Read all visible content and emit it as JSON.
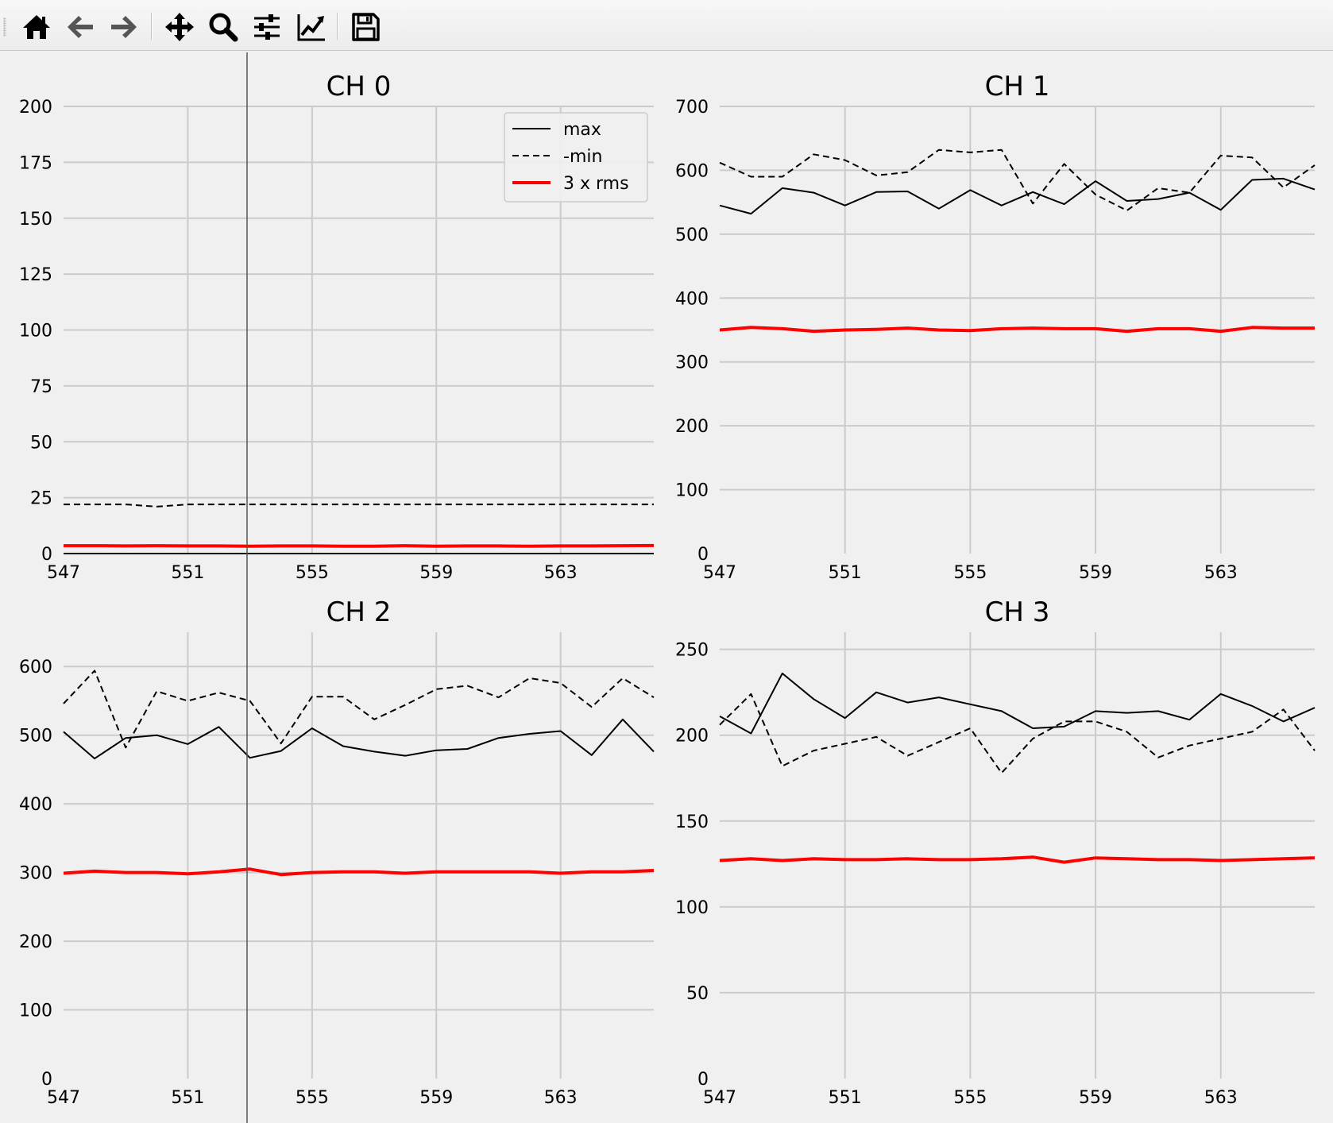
{
  "toolbar": {
    "buttons": [
      {
        "name": "home-button",
        "icon": "home-icon"
      },
      {
        "name": "back-button",
        "icon": "arrow-left-icon"
      },
      {
        "name": "forward-button",
        "icon": "arrow-right-icon"
      },
      {
        "name": "pan-button",
        "icon": "move-icon"
      },
      {
        "name": "zoom-button",
        "icon": "magnifier-icon"
      },
      {
        "name": "subplots-button",
        "icon": "sliders-icon"
      },
      {
        "name": "customize-button",
        "icon": "line-chart-icon"
      },
      {
        "name": "save-button",
        "icon": "floppy-disk-icon"
      }
    ]
  },
  "chart_data": [
    {
      "type": "line",
      "title": "CH 0",
      "xlim": [
        547,
        566
      ],
      "ylim": [
        0,
        200
      ],
      "xticks": [
        547,
        551,
        555,
        559,
        563
      ],
      "yticks": [
        0,
        25,
        50,
        75,
        100,
        125,
        150,
        175,
        200
      ],
      "grid": true,
      "legend": {
        "placement": "top-right",
        "entries": [
          "max",
          "-min",
          "3 x rms"
        ]
      },
      "x": [
        547,
        548,
        549,
        550,
        551,
        552,
        553,
        554,
        555,
        556,
        557,
        558,
        559,
        560,
        561,
        562,
        563,
        564,
        565,
        566
      ],
      "series": [
        {
          "name": "max",
          "style": "solid",
          "color": "#000000",
          "values": [
            0,
            0,
            0,
            0,
            0,
            0,
            0,
            0,
            0,
            0,
            0,
            0,
            0,
            0,
            0,
            0,
            0,
            0,
            0,
            0
          ]
        },
        {
          "name": "-min",
          "style": "dashed",
          "color": "#000000",
          "values": [
            22,
            22,
            22,
            21,
            22,
            22,
            22,
            22,
            22,
            22,
            22,
            22,
            22,
            22,
            22,
            22,
            22,
            22,
            22,
            22
          ]
        },
        {
          "name": "3 x rms",
          "style": "solid",
          "color": "#ff0000",
          "values": [
            3.5,
            3.5,
            3.4,
            3.5,
            3.4,
            3.4,
            3.3,
            3.4,
            3.4,
            3.3,
            3.3,
            3.5,
            3.3,
            3.4,
            3.4,
            3.3,
            3.4,
            3.4,
            3.5,
            3.6
          ]
        }
      ]
    },
    {
      "type": "line",
      "title": "CH 1",
      "xlim": [
        547,
        566
      ],
      "ylim": [
        0,
        700
      ],
      "xticks": [
        547,
        551,
        555,
        559,
        563
      ],
      "yticks": [
        0,
        100,
        200,
        300,
        400,
        500,
        600,
        700
      ],
      "grid": true,
      "x": [
        547,
        548,
        549,
        550,
        551,
        552,
        553,
        554,
        555,
        556,
        557,
        558,
        559,
        560,
        561,
        562,
        563,
        564,
        565,
        566
      ],
      "series": [
        {
          "name": "max",
          "style": "solid",
          "color": "#000000",
          "values": [
            545,
            532,
            572,
            565,
            545,
            566,
            567,
            540,
            569,
            545,
            566,
            547,
            583,
            552,
            555,
            565,
            538,
            585,
            587,
            570
          ]
        },
        {
          "name": "-min",
          "style": "dashed",
          "color": "#000000",
          "values": [
            612,
            590,
            590,
            625,
            616,
            592,
            597,
            632,
            628,
            632,
            548,
            610,
            562,
            537,
            572,
            565,
            623,
            620,
            573,
            608
          ]
        },
        {
          "name": "3 x rms",
          "style": "solid",
          "color": "#ff0000",
          "values": [
            350,
            354,
            352,
            348,
            350,
            351,
            353,
            350,
            349,
            352,
            353,
            352,
            352,
            348,
            352,
            352,
            348,
            354,
            353,
            353
          ]
        }
      ]
    },
    {
      "type": "line",
      "title": "CH 2",
      "xlim": [
        547,
        566
      ],
      "ylim": [
        0,
        650
      ],
      "xticks": [
        547,
        551,
        555,
        559,
        563
      ],
      "yticks": [
        0,
        100,
        200,
        300,
        400,
        500,
        600
      ],
      "grid": true,
      "x": [
        547,
        548,
        549,
        550,
        551,
        552,
        553,
        554,
        555,
        556,
        557,
        558,
        559,
        560,
        561,
        562,
        563,
        564,
        565,
        566
      ],
      "series": [
        {
          "name": "max",
          "style": "solid",
          "color": "#000000",
          "values": [
            505,
            466,
            496,
            500,
            487,
            512,
            467,
            477,
            510,
            484,
            476,
            470,
            478,
            480,
            496,
            502,
            506,
            471,
            523,
            476
          ]
        },
        {
          "name": "-min",
          "style": "dashed",
          "color": "#000000",
          "values": [
            546,
            594,
            482,
            564,
            550,
            562,
            550,
            488,
            556,
            556,
            523,
            544,
            567,
            572,
            555,
            583,
            576,
            541,
            583,
            555
          ]
        },
        {
          "name": "3 x rms",
          "style": "solid",
          "color": "#ff0000",
          "values": [
            299,
            302,
            300,
            300,
            298,
            301,
            305,
            297,
            300,
            301,
            301,
            299,
            301,
            301,
            301,
            301,
            299,
            301,
            301,
            303
          ]
        }
      ]
    },
    {
      "type": "line",
      "title": "CH 3",
      "xlim": [
        547,
        566
      ],
      "ylim": [
        0,
        260
      ],
      "xticks": [
        547,
        551,
        555,
        559,
        563
      ],
      "yticks": [
        0,
        50,
        100,
        150,
        200,
        250
      ],
      "grid": true,
      "x": [
        547,
        548,
        549,
        550,
        551,
        552,
        553,
        554,
        555,
        556,
        557,
        558,
        559,
        560,
        561,
        562,
        563,
        564,
        565,
        566
      ],
      "series": [
        {
          "name": "max",
          "style": "solid",
          "color": "#000000",
          "values": [
            211,
            201,
            236,
            221,
            210,
            225,
            219,
            222,
            218,
            214,
            204,
            205,
            214,
            213,
            214,
            209,
            224,
            217,
            208,
            216
          ]
        },
        {
          "name": "-min",
          "style": "dashed",
          "color": "#000000",
          "values": [
            206,
            224,
            182,
            191,
            195,
            199,
            188,
            196,
            204,
            178,
            198,
            208,
            208,
            202,
            187,
            194,
            198,
            202,
            215,
            191
          ]
        },
        {
          "name": "3 x rms",
          "style": "solid",
          "color": "#ff0000",
          "values": [
            127,
            128,
            127,
            128,
            127.5,
            127.5,
            128,
            127.5,
            127.5,
            128,
            129,
            126,
            128.5,
            128,
            127.5,
            127.5,
            127,
            127.5,
            128,
            128.5
          ]
        }
      ]
    }
  ]
}
